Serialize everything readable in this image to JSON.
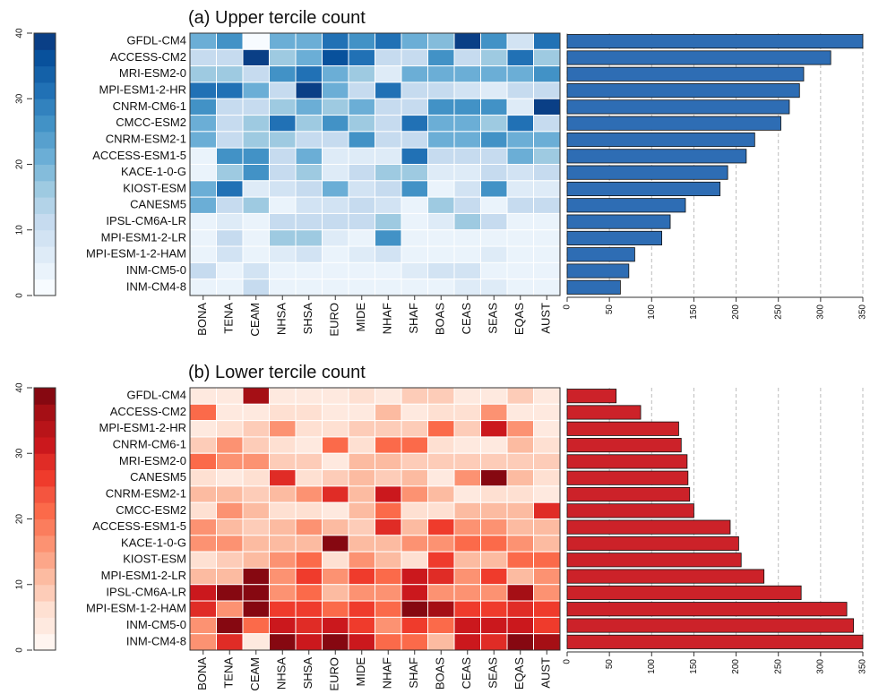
{
  "chart_data": [
    {
      "type": "heatmap",
      "title": "(a) Upper tercile count",
      "x": [
        "BONA",
        "TENA",
        "CEAM",
        "NHSA",
        "SHSA",
        "EURO",
        "MIDE",
        "NHAF",
        "SHAF",
        "BOAS",
        "CEAS",
        "SEAS",
        "EQAS",
        "AUST"
      ],
      "y": [
        "GFDL-CM4",
        "ACCESS-CM2",
        "MRI-ESM2-0",
        "MPI-ESM1-2-HR",
        "CNRM-CM6-1",
        "CMCC-ESM2",
        "CNRM-ESM2-1",
        "ACCESS-ESM1-5",
        "KACE-1-0-G",
        "KIOST-ESM",
        "CANESM5",
        "IPSL-CM6A-LR",
        "MPI-ESM1-2-LR",
        "MPI-ESM-1-2-HAM",
        "INM-CM5-0",
        "INM-CM4-8"
      ],
      "values": [
        [
          20,
          25,
          2,
          22,
          20,
          30,
          25,
          30,
          20,
          18,
          38,
          25,
          8,
          32
        ],
        [
          10,
          12,
          40,
          15,
          22,
          35,
          30,
          10,
          12,
          25,
          10,
          15,
          30,
          17
        ],
        [
          15,
          17,
          10,
          25,
          30,
          22,
          15,
          5,
          22,
          22,
          22,
          22,
          20,
          25
        ],
        [
          30,
          30,
          20,
          12,
          40,
          20,
          10,
          32,
          12,
          10,
          8,
          5,
          10,
          10
        ],
        [
          25,
          12,
          12,
          15,
          22,
          15,
          22,
          12,
          10,
          25,
          25,
          25,
          5,
          40
        ],
        [
          20,
          12,
          15,
          30,
          15,
          25,
          15,
          10,
          32,
          22,
          22,
          15,
          30,
          10
        ],
        [
          22,
          12,
          15,
          17,
          12,
          10,
          25,
          10,
          10,
          22,
          22,
          25,
          20,
          22
        ],
        [
          3,
          25,
          25,
          12,
          22,
          5,
          5,
          5,
          30,
          10,
          10,
          10,
          20,
          17
        ],
        [
          3,
          15,
          25,
          10,
          15,
          5,
          12,
          17,
          17,
          5,
          5,
          12,
          8,
          12
        ],
        [
          20,
          32,
          5,
          8,
          10,
          20,
          8,
          10,
          25,
          3,
          8,
          25,
          5,
          5
        ],
        [
          22,
          10,
          17,
          3,
          8,
          8,
          12,
          8,
          3,
          15,
          12,
          3,
          12,
          12
        ],
        [
          3,
          5,
          3,
          12,
          10,
          10,
          10,
          15,
          3,
          5,
          15,
          10,
          3,
          3
        ],
        [
          3,
          12,
          3,
          15,
          15,
          5,
          3,
          25,
          3,
          3,
          3,
          3,
          3,
          3
        ],
        [
          3,
          8,
          3,
          5,
          8,
          3,
          5,
          8,
          3,
          3,
          3,
          5,
          3,
          3
        ],
        [
          10,
          3,
          8,
          3,
          3,
          3,
          3,
          3,
          5,
          8,
          8,
          3,
          3,
          3
        ],
        [
          3,
          3,
          12,
          3,
          3,
          3,
          3,
          3,
          3,
          3,
          5,
          5,
          3,
          3
        ]
      ],
      "zlim": [
        0,
        40
      ],
      "zticks": [
        0,
        10,
        20,
        30,
        40
      ],
      "colors": [
        "#f7fbff",
        "#eaf3fb",
        "#deebf7",
        "#d2e3f3",
        "#c6dbef",
        "#b3d3e8",
        "#9ecae1",
        "#84bcdb",
        "#6baed6",
        "#57a0ce",
        "#4292c6",
        "#3282be",
        "#2171b5",
        "#1461a8",
        "#08519c",
        "#0a3f86"
      ]
    },
    {
      "type": "barh",
      "values": [
        350,
        312,
        280,
        275,
        263,
        253,
        222,
        212,
        190,
        181,
        140,
        122,
        112,
        80,
        73,
        63
      ],
      "xlim": [
        0,
        350
      ],
      "xticks": [
        0,
        50,
        100,
        150,
        200,
        250,
        300,
        350
      ],
      "color": "#2e6db4",
      "grid": true
    },
    {
      "type": "heatmap",
      "title": "(b) Lower tercile count",
      "x": [
        "BONA",
        "TENA",
        "CEAM",
        "NHSA",
        "SHSA",
        "EURO",
        "MIDE",
        "NHAF",
        "SHAF",
        "BOAS",
        "CEAS",
        "SEAS",
        "EQAS",
        "AUST"
      ],
      "y": [
        "GFDL-CM4",
        "ACCESS-CM2",
        "MPI-ESM1-2-HR",
        "CNRM-CM6-1",
        "MRI-ESM2-0",
        "CANESM5",
        "CNRM-ESM2-1",
        "CMCC-ESM2",
        "ACCESS-ESM1-5",
        "KACE-1-0-G",
        "KIOST-ESM",
        "MPI-ESM1-2-LR",
        "IPSL-CM6A-LR",
        "MPI-ESM-1-2-HAM",
        "INM-CM5-0",
        "INM-CM4-8"
      ],
      "values": [
        [
          3,
          3,
          37,
          3,
          3,
          3,
          5,
          3,
          8,
          8,
          3,
          3,
          8,
          3
        ],
        [
          20,
          3,
          3,
          5,
          5,
          3,
          3,
          12,
          3,
          5,
          5,
          15,
          3,
          3
        ],
        [
          3,
          5,
          8,
          17,
          5,
          5,
          8,
          8,
          8,
          20,
          8,
          30,
          15,
          3
        ],
        [
          8,
          15,
          8,
          5,
          3,
          22,
          5,
          20,
          20,
          5,
          3,
          3,
          10,
          5
        ],
        [
          22,
          15,
          15,
          8,
          8,
          3,
          12,
          12,
          8,
          8,
          8,
          8,
          8,
          8
        ],
        [
          5,
          3,
          5,
          28,
          5,
          8,
          10,
          8,
          12,
          3,
          17,
          40,
          12,
          5
        ],
        [
          12,
          10,
          8,
          10,
          15,
          28,
          12,
          30,
          17,
          12,
          3,
          5,
          5,
          3
        ],
        [
          5,
          17,
          10,
          5,
          5,
          3,
          12,
          20,
          5,
          5,
          12,
          10,
          10,
          28
        ],
        [
          17,
          12,
          8,
          12,
          17,
          12,
          8,
          28,
          12,
          25,
          15,
          17,
          12,
          12
        ],
        [
          15,
          15,
          10,
          10,
          12,
          40,
          12,
          12,
          15,
          15,
          22,
          22,
          17,
          10
        ],
        [
          5,
          8,
          12,
          15,
          22,
          5,
          17,
          10,
          5,
          25,
          12,
          12,
          22,
          22
        ],
        [
          10,
          12,
          40,
          17,
          25,
          15,
          25,
          20,
          30,
          28,
          15,
          25,
          10,
          15
        ],
        [
          30,
          38,
          40,
          17,
          20,
          12,
          17,
          17,
          32,
          15,
          15,
          17,
          35,
          15
        ],
        [
          28,
          15,
          40,
          25,
          25,
          20,
          25,
          20,
          40,
          35,
          25,
          25,
          28,
          25
        ],
        [
          15,
          38,
          20,
          30,
          28,
          30,
          25,
          15,
          25,
          20,
          30,
          30,
          30,
          25
        ],
        [
          15,
          28,
          3,
          38,
          30,
          38,
          30,
          22,
          20,
          10,
          30,
          28,
          38,
          35
        ]
      ],
      "zlim": [
        0,
        40
      ],
      "zticks": [
        0,
        10,
        20,
        30,
        40
      ],
      "colors": [
        "#fff5f0",
        "#fee9df",
        "#fee0d2",
        "#fdccb8",
        "#fcbba1",
        "#fca689",
        "#fc9272",
        "#fb7d5d",
        "#fb6a4a",
        "#f4553f",
        "#ef3b2c",
        "#e02c26",
        "#cb181d",
        "#b81419",
        "#a50f15",
        "#860811"
      ]
    },
    {
      "type": "barh",
      "values": [
        58,
        87,
        132,
        135,
        142,
        143,
        145,
        150,
        193,
        203,
        206,
        233,
        277,
        331,
        339,
        350
      ],
      "xlim": [
        0,
        350
      ],
      "xticks": [
        0,
        50,
        100,
        150,
        200,
        250,
        300,
        350
      ],
      "color": "#cc2229",
      "grid": true
    }
  ]
}
